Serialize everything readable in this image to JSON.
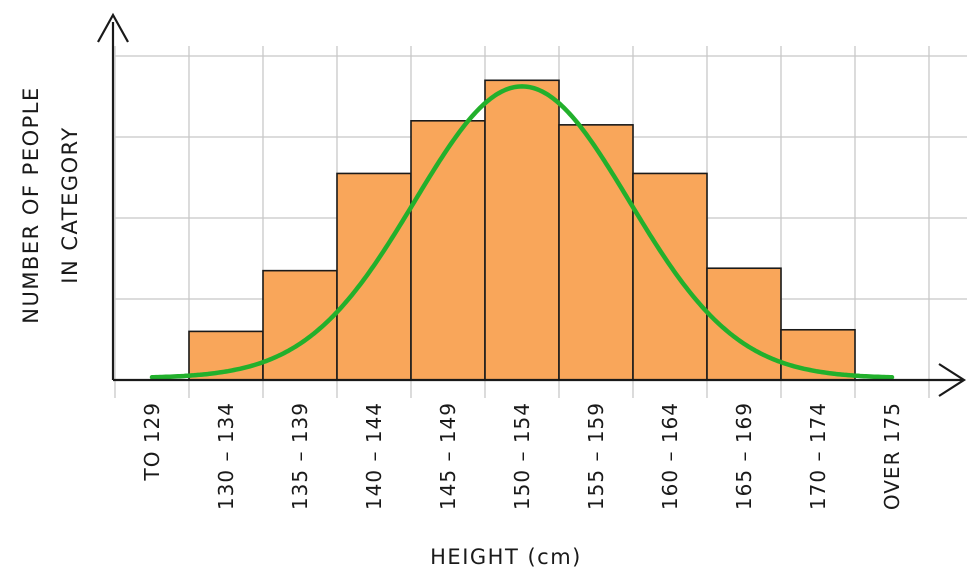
{
  "chart_data": {
    "type": "bar",
    "title": "",
    "xlabel": "HEIGHT (cm)",
    "ylabel": [
      "NUMBER OF PEOPLE",
      "IN CATEGORY"
    ],
    "categories": [
      "TO 129",
      "130-134",
      "135-139",
      "140-144",
      "145-149",
      "150-154",
      "155-159",
      "160-164",
      "165-169",
      "170-174",
      "OVER 175"
    ],
    "values": [
      0,
      0.6,
      1.35,
      2.55,
      3.2,
      3.7,
      3.15,
      2.55,
      1.38,
      0.62,
      0
    ],
    "ylim": [
      0,
      4
    ],
    "y_tick_labels": false,
    "grid": true,
    "overlay_curve": {
      "type": "normal-curve",
      "mean_category": "150-154",
      "peak_value": 3.6,
      "color": "#22b02c"
    },
    "colors": {
      "bar_fill": "#f9a65a",
      "bar_stroke": "#1a1a1a",
      "grid": "#c8c8c8",
      "axis": "#1a1a1a",
      "curve": "#22b02c"
    }
  }
}
